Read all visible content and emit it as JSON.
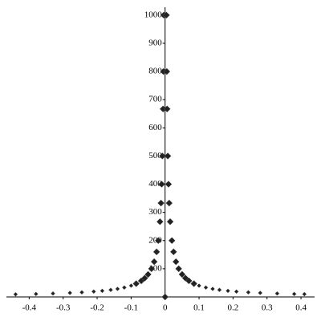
{
  "chart_data": {
    "type": "scatter",
    "color": "#222222",
    "x": [
      -0.44,
      -0.38,
      -0.33,
      -0.28,
      -0.245,
      -0.21,
      -0.185,
      -0.16,
      -0.14,
      -0.12,
      -0.1,
      -0.085,
      -0.07,
      -0.06,
      -0.05,
      -0.04,
      -0.032,
      -0.025,
      -0.02,
      -0.015,
      -0.012,
      -0.01,
      -0.008,
      -0.006,
      -0.005,
      -0.004,
      0,
      0.004,
      0.005,
      0.006,
      0.008,
      0.01,
      0.012,
      0.015,
      0.02,
      0.025,
      0.032,
      0.04,
      0.05,
      0.06,
      0.07,
      0.085,
      0.1,
      0.12,
      0.14,
      0.16,
      0.185,
      0.21,
      0.245,
      0.28,
      0.33,
      0.38,
      0.41
    ],
    "values": [
      9.1,
      10.5,
      12.1,
      14.3,
      16.3,
      19,
      21.6,
      25,
      28.6,
      33.3,
      40,
      47.1,
      57.1,
      66.7,
      80,
      100,
      125,
      160,
      200,
      267,
      333,
      400,
      500,
      667,
      800,
      1000,
      0,
      1000,
      800,
      667,
      500,
      400,
      333,
      267,
      200,
      160,
      125,
      100,
      80,
      66.7,
      57.1,
      47.1,
      40,
      33.3,
      28.6,
      25,
      21.6,
      19,
      16.3,
      14.3,
      12.1,
      10.5,
      9.8
    ],
    "xlim": [
      -0.467,
      0.44
    ],
    "ylim": [
      0,
      1028
    ],
    "xticks": [
      -0.4,
      -0.3,
      -0.2,
      -0.1,
      0,
      0.1,
      0.2,
      0.3,
      0.4
    ],
    "yticks": [
      100,
      200,
      300,
      400,
      500,
      600,
      700,
      800,
      900,
      1000
    ]
  }
}
